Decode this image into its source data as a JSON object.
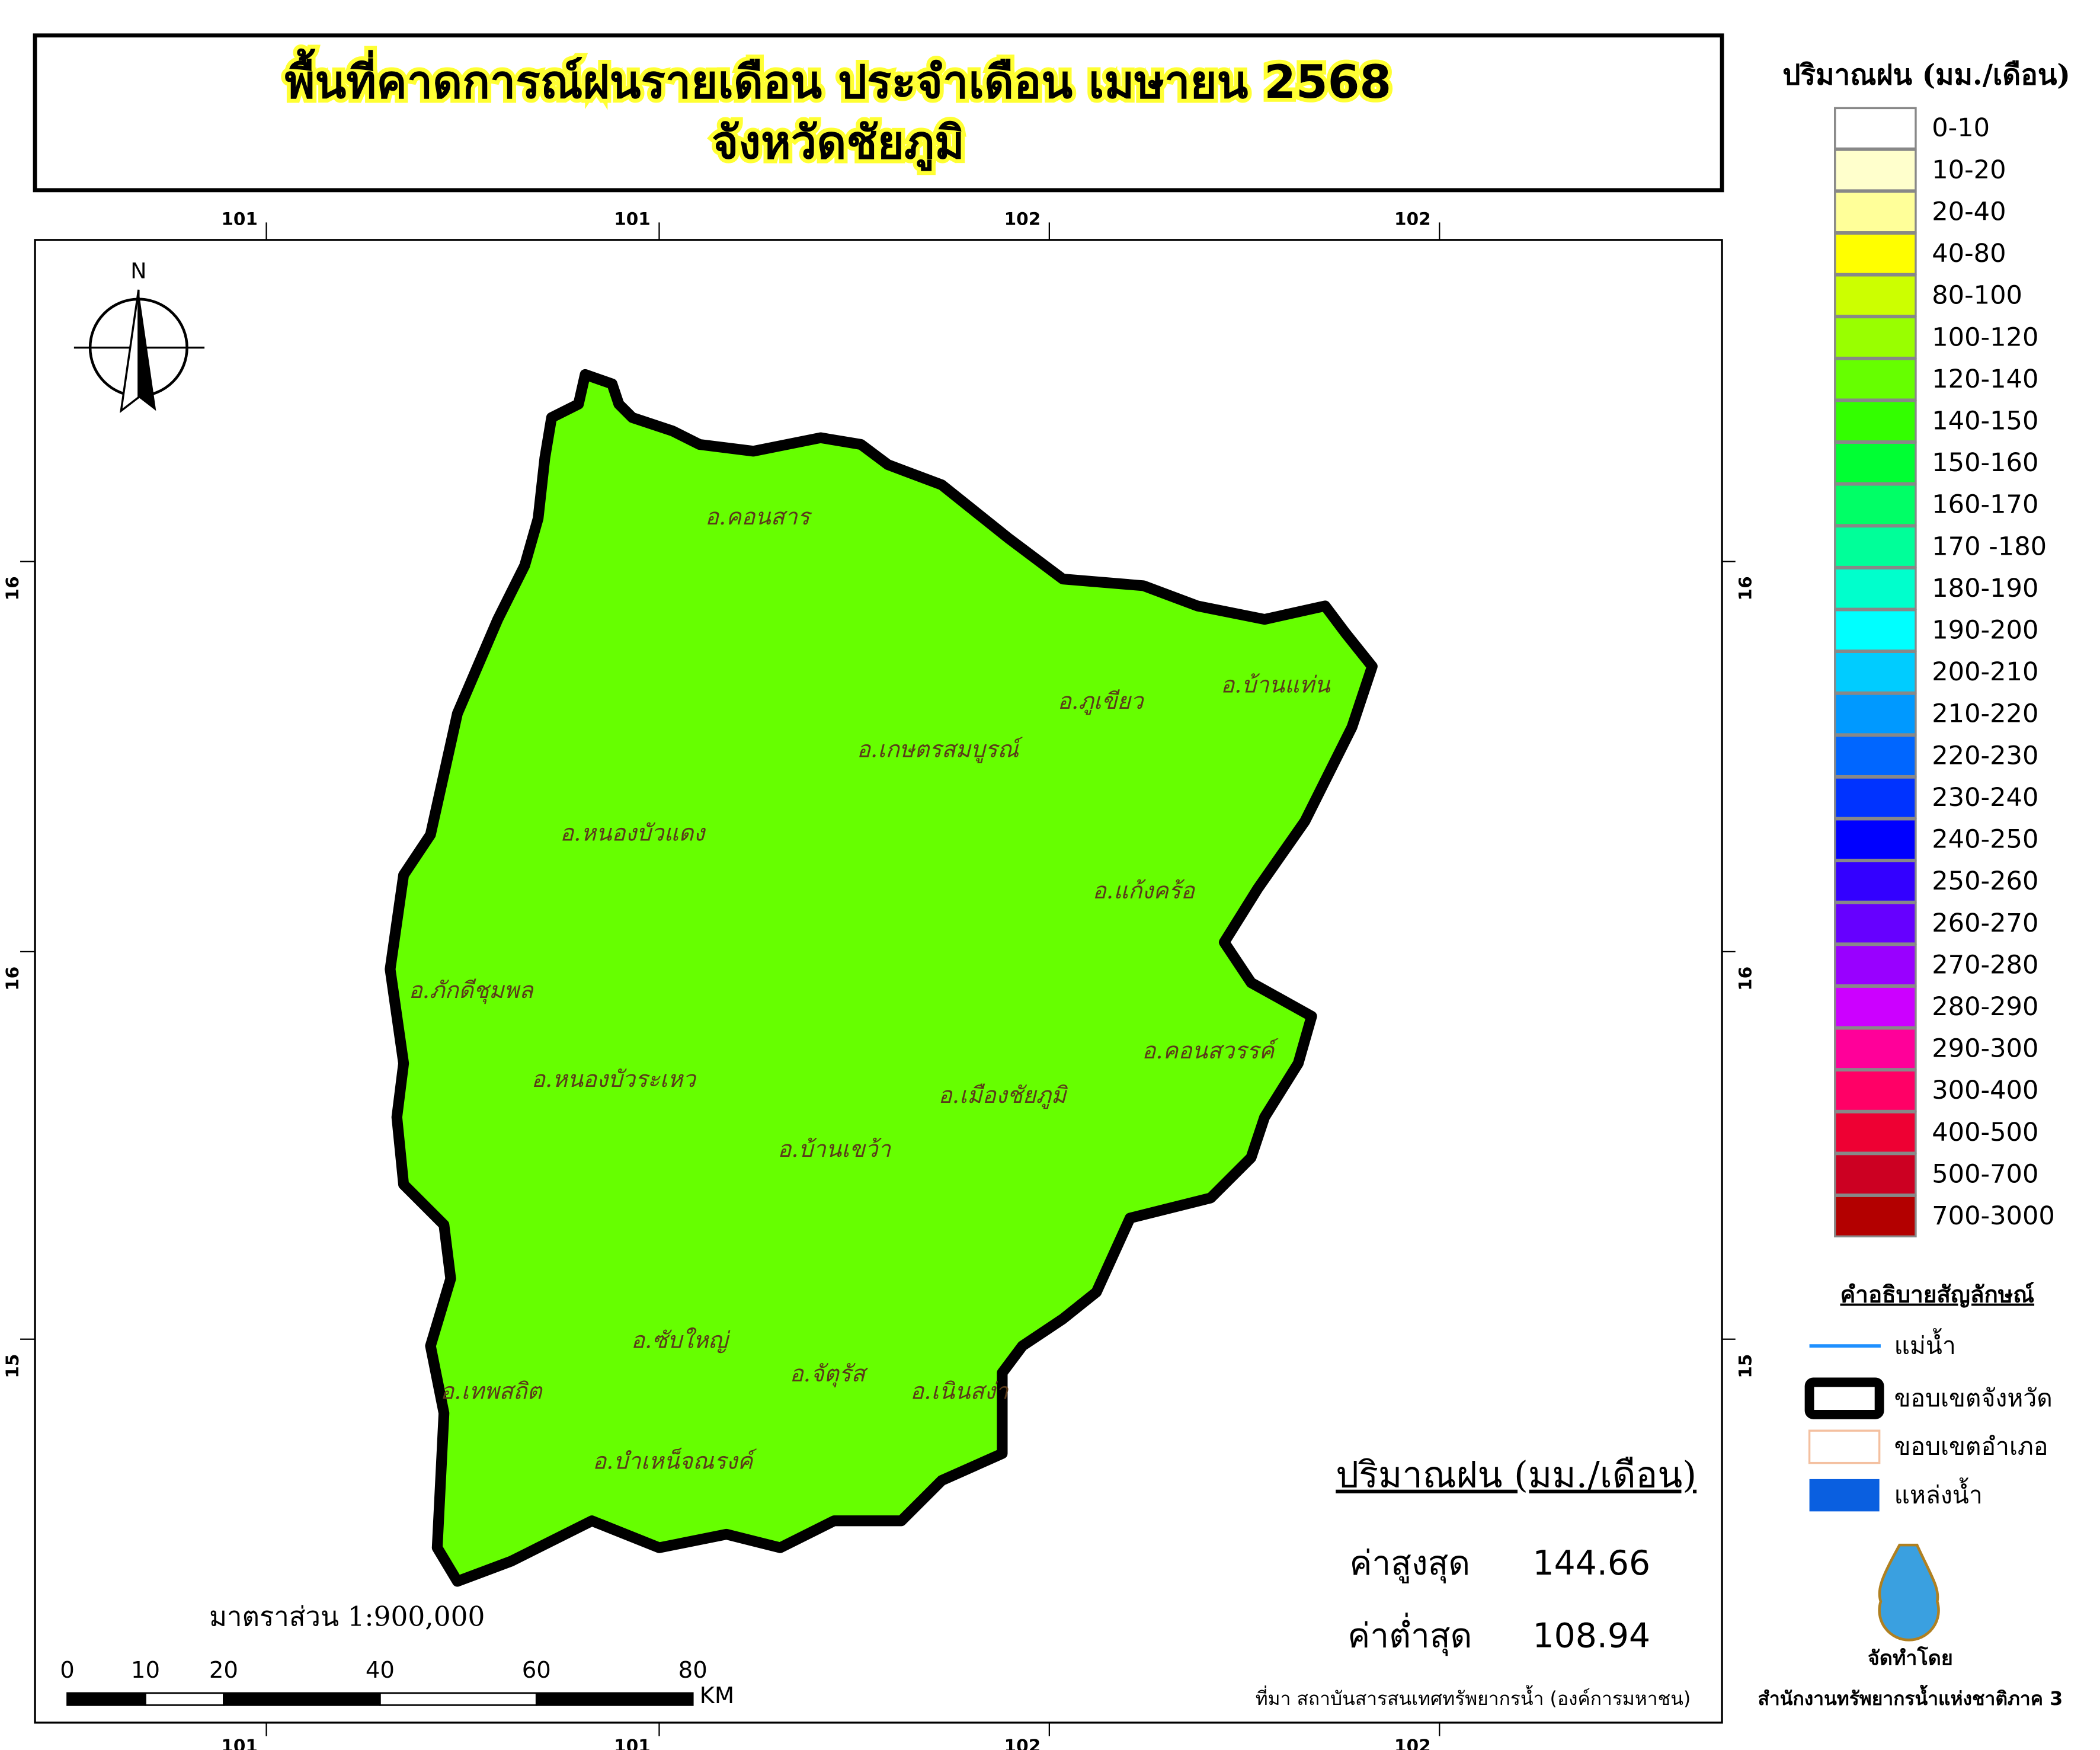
{
  "header": {
    "title_line1": "พื้นที่คาดการณ์ฝนรายเดือน ประจำเดือน เมษายน 2568",
    "title_line2": "จังหวัดชัยภูมิ"
  },
  "grid": {
    "top": [
      "101",
      "101",
      "102",
      "102"
    ],
    "bottom": [
      "101",
      "101",
      "102",
      "102"
    ],
    "left": [
      "16",
      "16",
      "15"
    ],
    "right": [
      "16",
      "16",
      "15"
    ]
  },
  "north": "N",
  "districts": [
    "อ.คอนสาร",
    "อ.ภูเขียว",
    "อ.บ้านแท่น",
    "อ.เกษตรสมบูรณ์",
    "อ.หนองบัวแดง",
    "อ.แก้งคร้อ",
    "อ.ภักดีชุมพล",
    "อ.คอนสวรรค์",
    "อ.หนองบัวระเหว",
    "อ.เมืองชัยภูมิ",
    "อ.บ้านเขว้า",
    "อ.ซับใหญ่",
    "อ.จัตุรัส",
    "อ.เทพสถิต",
    "อ.เนินสง่า",
    "อ.บำเหน็จณรงค์"
  ],
  "legend": {
    "title": "ปริมาณฝน (มม./เดือน)",
    "items": [
      {
        "label": "0-10",
        "color": "#ffffff"
      },
      {
        "label": "10-20",
        "color": "#ffffcc"
      },
      {
        "label": "20-40",
        "color": "#ffff99"
      },
      {
        "label": "40-80",
        "color": "#ffff00"
      },
      {
        "label": "80-100",
        "color": "#ccff00"
      },
      {
        "label": "100-120",
        "color": "#99ff00"
      },
      {
        "label": "120-140",
        "color": "#66ff00"
      },
      {
        "label": "140-150",
        "color": "#33ff00"
      },
      {
        "label": "150-160",
        "color": "#00ff33"
      },
      {
        "label": "160-170",
        "color": "#00ff66"
      },
      {
        "label": "170 -180",
        "color": "#00ff99"
      },
      {
        "label": "180-190",
        "color": "#00ffcc"
      },
      {
        "label": "190-200",
        "color": "#00ffff"
      },
      {
        "label": "200-210",
        "color": "#00ccff"
      },
      {
        "label": "210-220",
        "color": "#0099ff"
      },
      {
        "label": "220-230",
        "color": "#0066ff"
      },
      {
        "label": "230-240",
        "color": "#0033ff"
      },
      {
        "label": "240-250",
        "color": "#0000ff"
      },
      {
        "label": "250-260",
        "color": "#3300ff"
      },
      {
        "label": "260-270",
        "color": "#6600ff"
      },
      {
        "label": "270-280",
        "color": "#9900ff"
      },
      {
        "label": "280-290",
        "color": "#cc00ff"
      },
      {
        "label": "290-300",
        "color": "#ff0099"
      },
      {
        "label": "300-400",
        "color": "#ff0066"
      },
      {
        "label": "400-500",
        "color": "#ee0033"
      },
      {
        "label": "500-700",
        "color": "#cc0022"
      },
      {
        "label": "700-3000",
        "color": "#b30000"
      }
    ]
  },
  "symbols": {
    "title": "คำอธิบายสัญลักษณ์",
    "river": "แม่น้ำ",
    "province": "ขอบเขตจังหวัด",
    "district": "ขอบเขตอำเภอ",
    "water": "แหล่งน้ำ"
  },
  "stats": {
    "title": "ปริมาณฝน (มม./เดือน)",
    "max_label": "ค่าสูงสุด",
    "max_value": "144.66",
    "min_label": "ค่าต่ำสุด",
    "min_value": "108.94"
  },
  "scale": {
    "text": "มาตราส่วน 1:900,000",
    "ticks": [
      0,
      10,
      20,
      40,
      60,
      80
    ],
    "unit": "KM"
  },
  "footer": {
    "source": "ที่มา  สถาบันสารสนเทศทรัพยากรน้ำ (องค์การมหาชน)",
    "made_by": "จัดทำโดย",
    "office": "สำนักงานทรัพยากรน้ำแห่งชาติภาค 3"
  }
}
